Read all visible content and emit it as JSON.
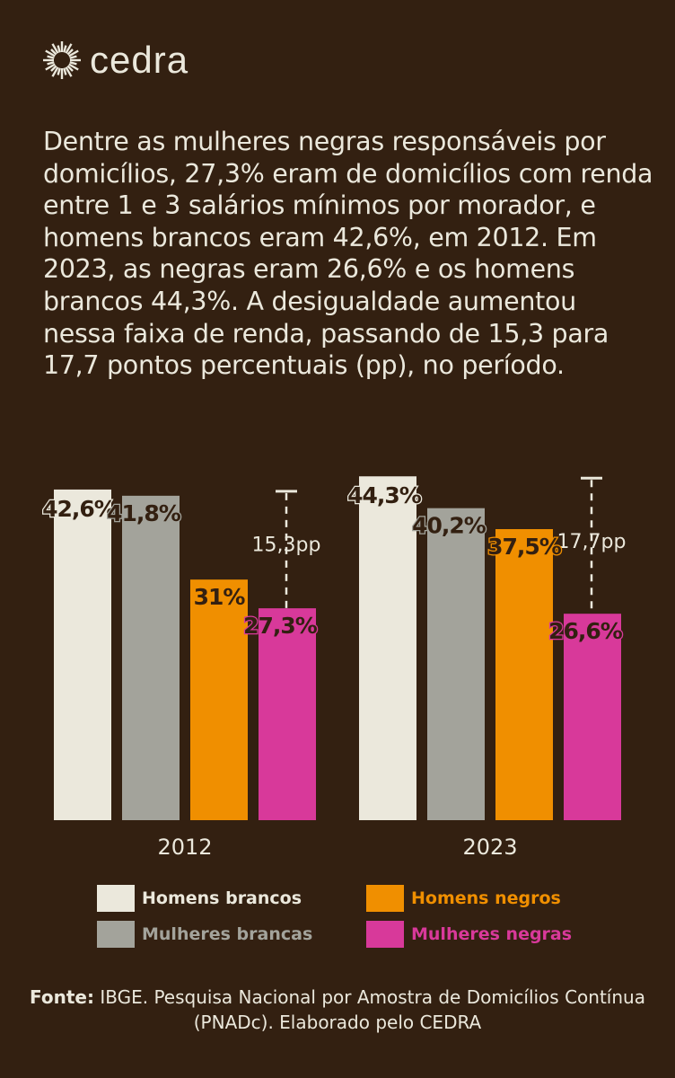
{
  "brand": {
    "name": "cedra"
  },
  "description": "Dentre as mulheres negras responsáveis por domicílios, 27,3% eram de domicílios com renda entre 1 e 3 salários mínimos por morador, e homens brancos eram 42,6%, em 2012. Em 2023, as negras eram 26,6% e os homens brancos 44,3%. A desigualdade aumentou nessa faixa de renda, passando de 15,3 para 17,7 pontos percentuais (pp), no período.",
  "chart_data": {
    "type": "bar",
    "title": "",
    "xlabel": "",
    "ylabel": "",
    "ylim": [
      0,
      45
    ],
    "categories": [
      "2012",
      "2023"
    ],
    "series": [
      {
        "name": "Homens brancos",
        "color": "#ebe8dc",
        "values": [
          42.6,
          44.3
        ],
        "labels": [
          "42,6%",
          "44,3%"
        ]
      },
      {
        "name": "Mulheres brancas",
        "color": "#a3a39b",
        "values": [
          41.8,
          40.2
        ],
        "labels": [
          "41,8%",
          "40,2%"
        ]
      },
      {
        "name": "Homens negros",
        "color": "#f08f00",
        "values": [
          31,
          37.5
        ],
        "labels": [
          "31%",
          "37,5%"
        ]
      },
      {
        "name": "Mulheres negras",
        "color": "#d8399a",
        "values": [
          27.3,
          26.6
        ],
        "labels": [
          "27,3%",
          "26,6%"
        ]
      }
    ],
    "gaps": [
      {
        "category": "2012",
        "value": 15.3,
        "label": "15,3pp"
      },
      {
        "category": "2023",
        "value": 17.7,
        "label": "17,7pp"
      }
    ],
    "legend_position": "bottom"
  },
  "source": {
    "label": "Fonte:",
    "text": " IBGE. Pesquisa Nacional por Amostra de Domicílios Contínua (PNADc). Elaborado pelo CEDRA"
  }
}
